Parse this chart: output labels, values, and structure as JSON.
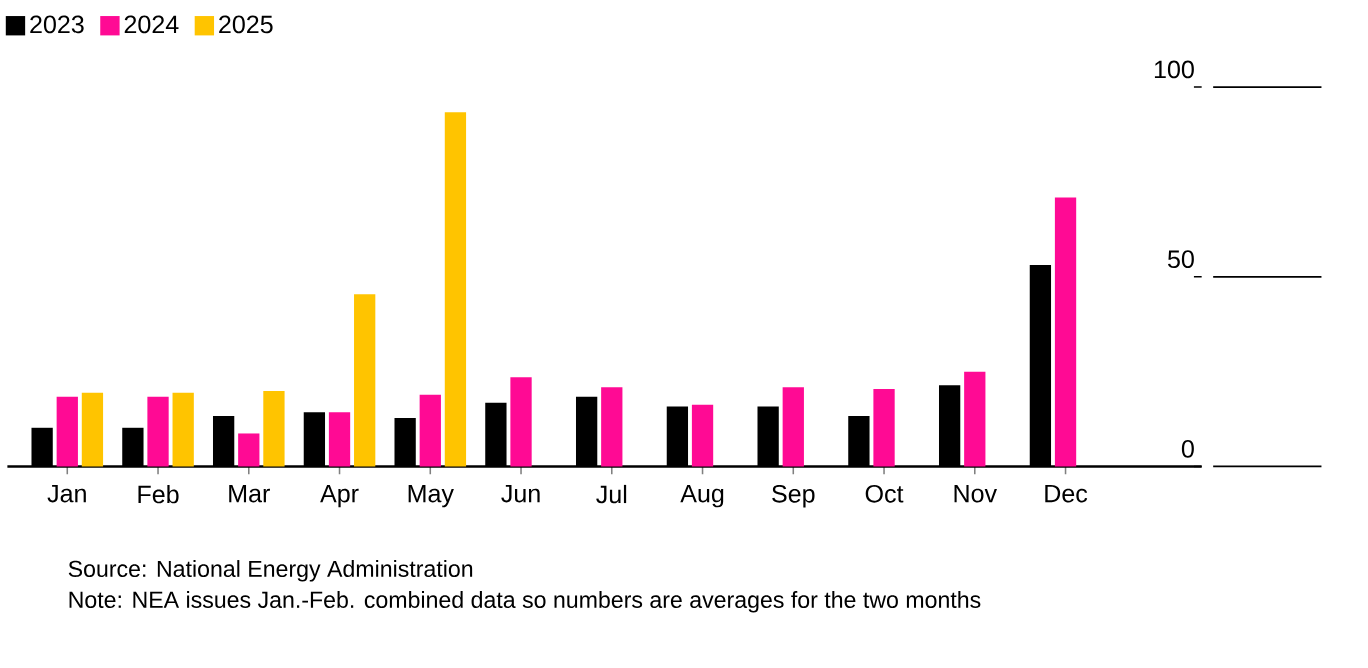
{
  "chart_data": {
    "type": "bar",
    "categories": [
      "Jan",
      "Feb",
      "Mar",
      "Apr",
      "May",
      "Jun",
      "Jul",
      "Aug",
      "Sep",
      "Oct",
      "Nov",
      "Dec"
    ],
    "series": [
      {
        "name": "2023",
        "color": "#000000",
        "values": [
          10.2,
          10.2,
          13.3,
          14.3,
          12.8,
          16.8,
          18.4,
          15.8,
          15.8,
          13.3,
          21.4,
          53.1
        ]
      },
      {
        "name": "2024",
        "color": "#ff0a94",
        "values": [
          18.4,
          18.4,
          8.7,
          14.3,
          18.9,
          23.5,
          20.9,
          16.3,
          20.9,
          20.4,
          25.0,
          70.9
        ]
      },
      {
        "name": "2025",
        "color": "#ffc400",
        "values": [
          19.4,
          19.4,
          19.9,
          45.4,
          93.4,
          null,
          null,
          null,
          null,
          null,
          null,
          null
        ]
      }
    ],
    "ylim": [
      0,
      100
    ],
    "yticks": [
      0,
      50,
      100
    ],
    "legend": "top left",
    "annotations": [
      "Source: National Energy Administration",
      "Note: NEA issues Jan.-Feb. combined data so numbers are averages for the two months"
    ]
  }
}
